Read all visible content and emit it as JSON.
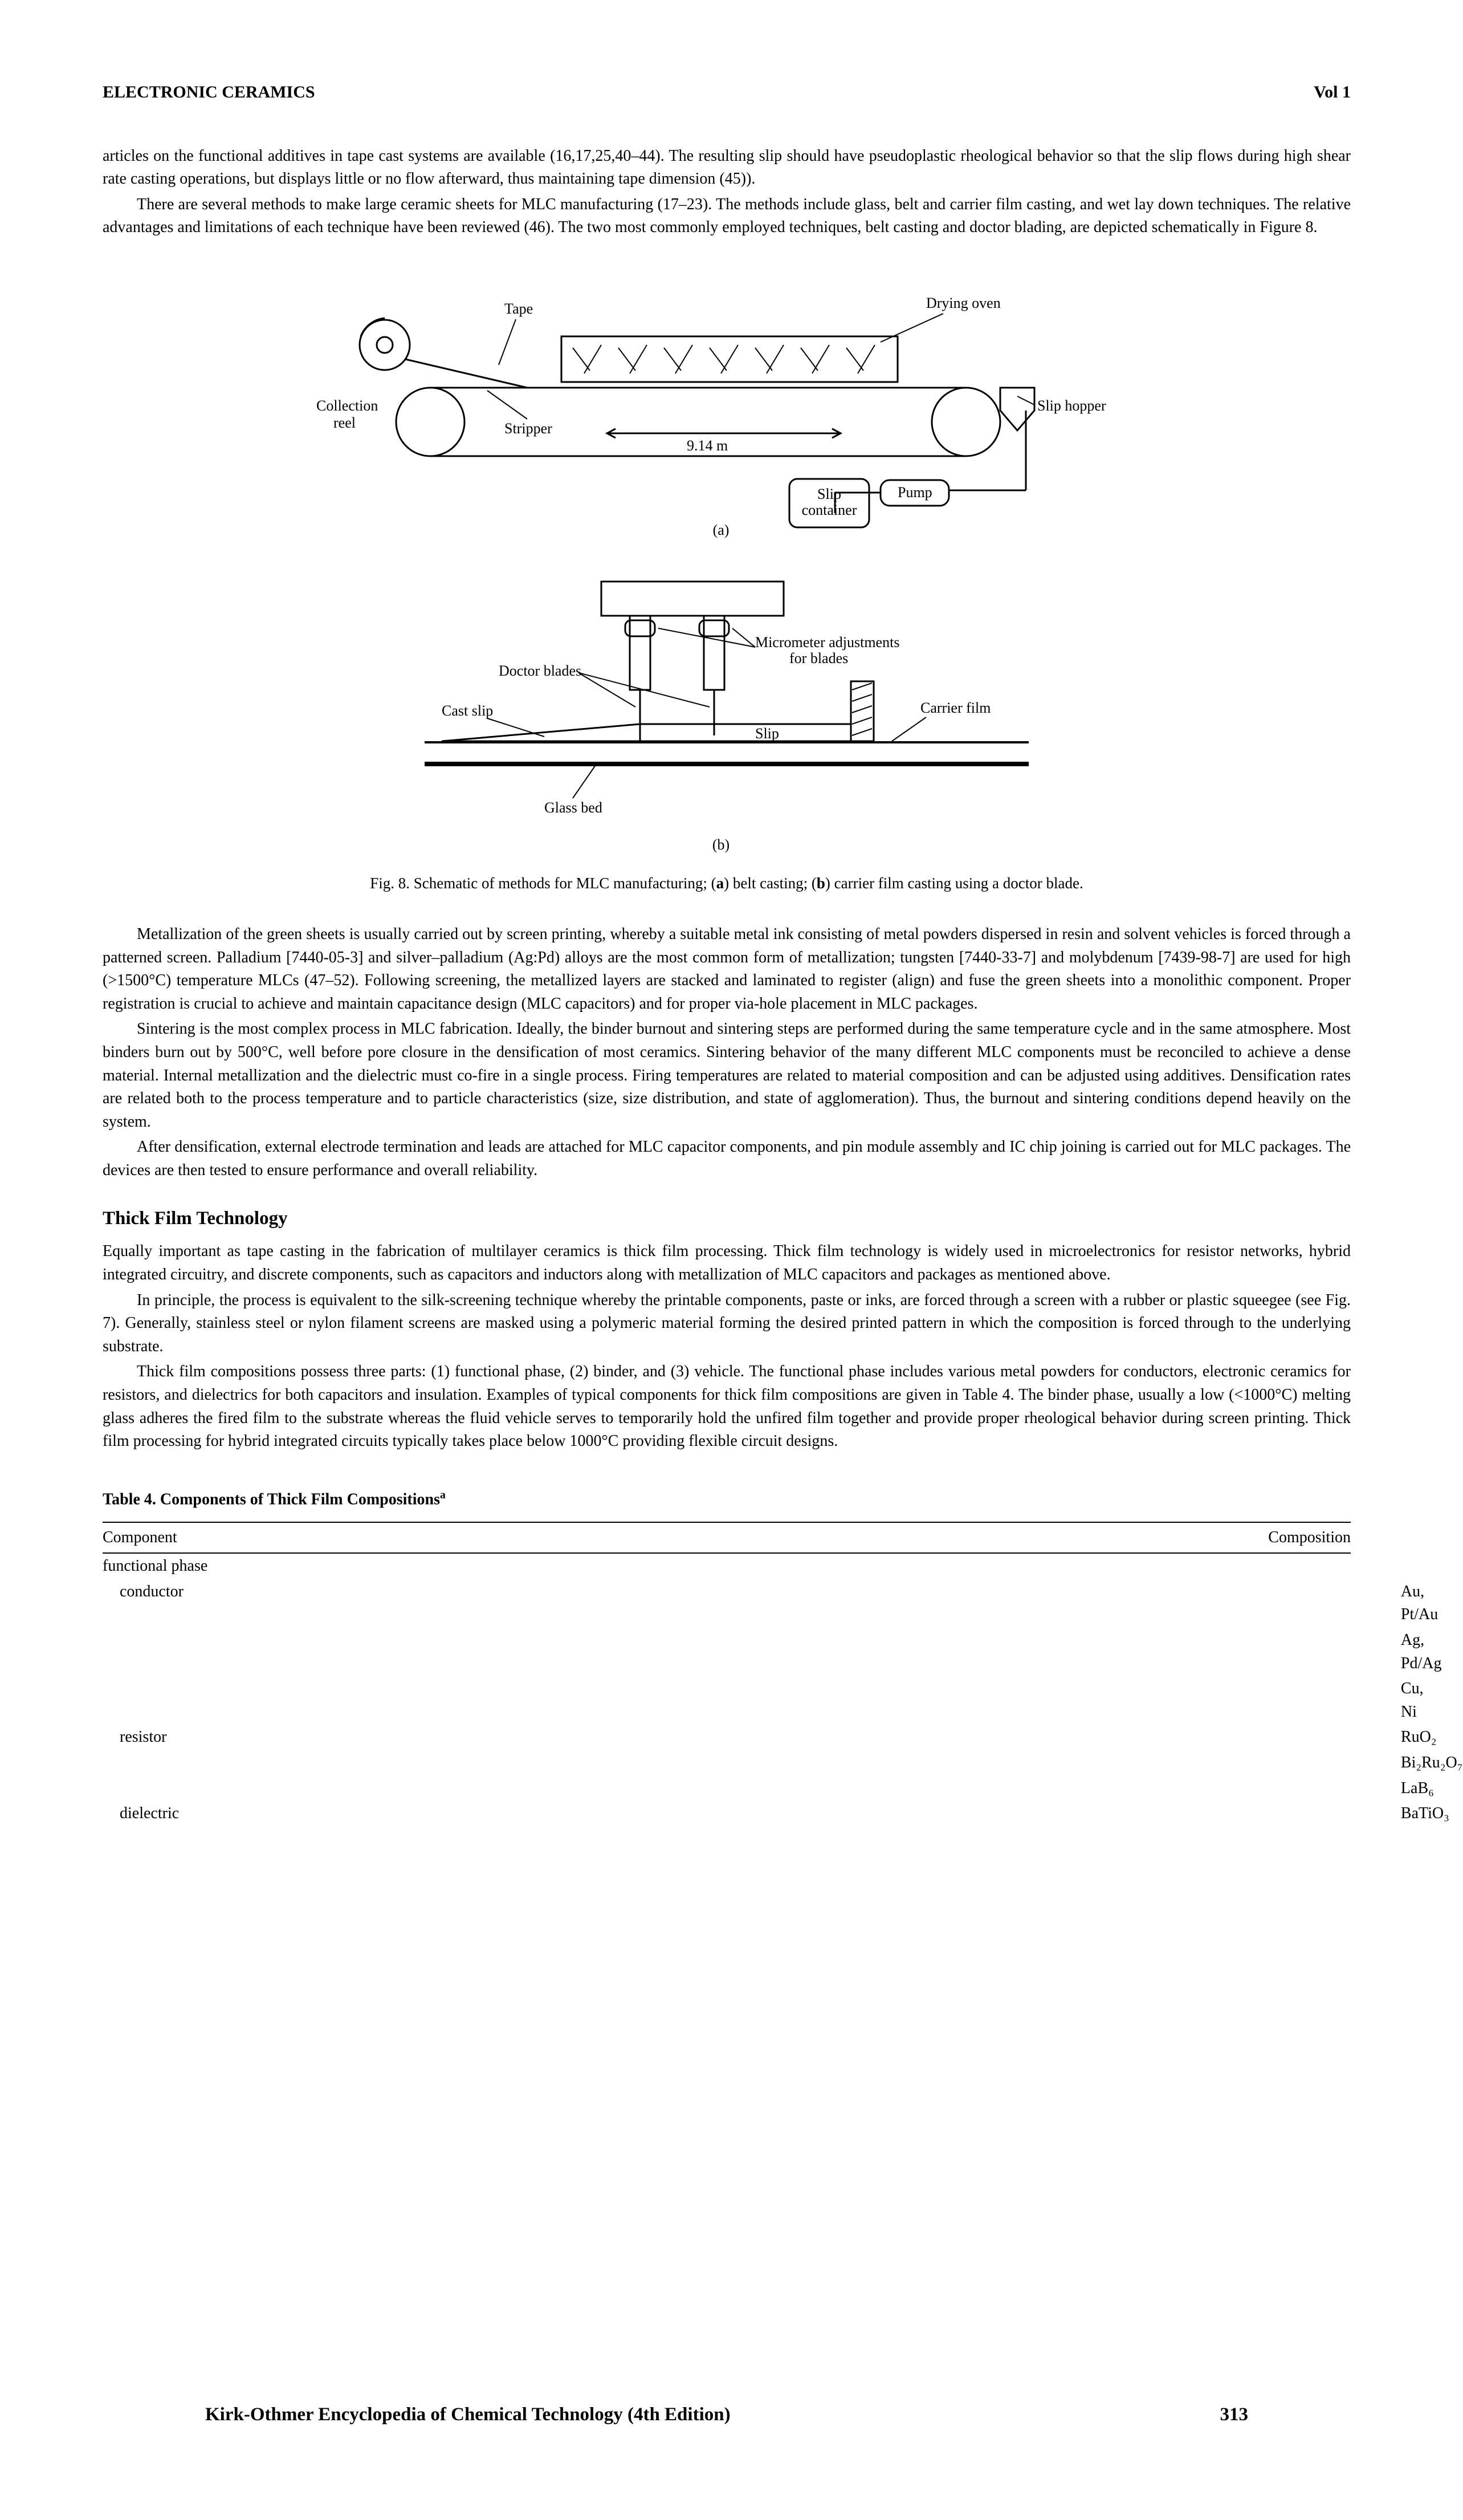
{
  "header": {
    "title": "ELECTRONIC CERAMICS",
    "vol": "Vol 1"
  },
  "body": {
    "p1": "articles on the functional additives in tape cast systems are available (16,17,25,40–44). The resulting slip should have pseudoplastic rheological behavior so that the slip flows during high shear rate casting operations, but displays little or no flow afterward, thus maintaining tape dimension (45)).",
    "p2": "There are several methods to make large ceramic sheets for MLC manufacturing (17–23). The methods include glass, belt and carrier film casting, and wet lay down techniques. The relative advantages and limitations of each technique have been reviewed (46). The two most commonly employed techniques, belt casting and doctor blading, are depicted schematically in Figure 8.",
    "fig": {
      "a": {
        "tape": "Tape",
        "drying": "Drying oven",
        "collection": "Collection\nreel",
        "stripper": "Stripper",
        "dist": "9.14 m",
        "sliphopper": "Slip hopper",
        "pump": "Pump",
        "slipcontainer": "Slip\ncontainer",
        "label": "(a)"
      },
      "b": {
        "doctor": "Doctor blades",
        "micro": "Micrometer adjustments\nfor blades",
        "cast": "Cast slip",
        "slip": "Slip",
        "carrier": "Carrier film",
        "glass": "Glass bed",
        "label": "(b)"
      },
      "caption_pre": "Fig. 8. Schematic of methods for MLC manufacturing; (",
      "caption_a": "a",
      "caption_mid1": ") belt casting; (",
      "caption_b": "b",
      "caption_mid2": ") carrier film casting using a doctor blade."
    },
    "p3": "Metallization of the green sheets is usually carried out by screen printing, whereby a suitable metal ink consisting of metal powders dispersed in resin and solvent vehicles is forced through a patterned screen. Palladium [7440-05-3] and silver–palladium (Ag:Pd) alloys are the most common form of metallization; tungsten [7440-33-7] and molybdenum [7439-98-7] are used for high (>1500°C) temperature MLCs (47–52). Following screening, the metallized layers are stacked and laminated to register (align) and fuse the green sheets into a monolithic component. Proper registration is crucial to achieve and maintain capacitance design (MLC capacitors) and for proper via-hole placement in MLC packages.",
    "p4": "Sintering is the most complex process in MLC fabrication. Ideally, the binder burnout and sintering steps are performed during the same temperature cycle and in the same atmosphere. Most binders burn out by 500°C, well before pore closure in the densification of most ceramics. Sintering behavior of the many different MLC components must be reconciled to achieve a dense material. Internal metallization and the dielectric must co-fire in a single process. Firing temperatures are related to material composition and can be adjusted using additives. Densification rates are related both to the process temperature and to particle characteristics (size, size distribution, and state of agglomeration). Thus, the burnout and sintering conditions depend heavily on the system.",
    "p5": "After densification, external electrode termination and leads are attached for MLC capacitor components, and pin module assembly and IC chip joining is carried out for MLC packages. The devices are then tested to ensure performance and overall reliability.",
    "sub": "Thick Film Technology",
    "p6": "Equally important as tape casting in the fabrication of multilayer ceramics is thick film processing. Thick film technology is widely used in microelectronics for resistor networks, hybrid integrated circuitry, and discrete components, such as capacitors and inductors along with metallization of MLC capacitors and packages as mentioned above.",
    "p7": "In principle, the process is equivalent to the silk-screening technique whereby the printable components, paste or inks, are forced through a screen with a rubber or plastic squeegee (see Fig. 7). Generally, stainless steel or nylon filament screens are masked using a polymeric material forming the desired printed pattern in which the composition is forced through to the underlying substrate.",
    "p8": "Thick film compositions possess three parts: (1) functional phase, (2) binder, and (3) vehicle. The functional phase includes various metal powders for conductors, electronic ceramics for resistors, and dielectrics for both capacitors and insulation. Examples of typical components for thick film compositions are given in Table 4. The binder phase, usually a low (<1000°C) melting glass adheres the fired film to the substrate whereas the fluid vehicle serves to temporarily hold the unfired film together and provide proper rheological behavior during screen printing. Thick film processing for hybrid integrated circuits typically takes place below 1000°C providing flexible circuit designs.",
    "table": {
      "title": "Table 4. Components of Thick Film Compositions",
      "sup": "a",
      "head_l": "Component",
      "head_r": "Composition",
      "rows": [
        {
          "l": "functional phase",
          "r": ""
        },
        {
          "l": "conductor",
          "r": "Au, Pt/Au",
          "ind": true
        },
        {
          "l": "",
          "r": "Ag, Pd/Ag"
        },
        {
          "l": "",
          "r": "Cu, Ni"
        },
        {
          "l": "resistor",
          "r": "RuO₂",
          "ind": true
        },
        {
          "l": "",
          "r": "Bi₂Ru₂O₇"
        },
        {
          "l": "",
          "r": "LaB₆"
        },
        {
          "l": "dielectric",
          "r": "BaTiO₃",
          "ind": true
        }
      ]
    }
  },
  "footer": {
    "left": "Kirk-Othmer Encyclopedia of Chemical Technology (4th Edition)",
    "page": "313"
  }
}
